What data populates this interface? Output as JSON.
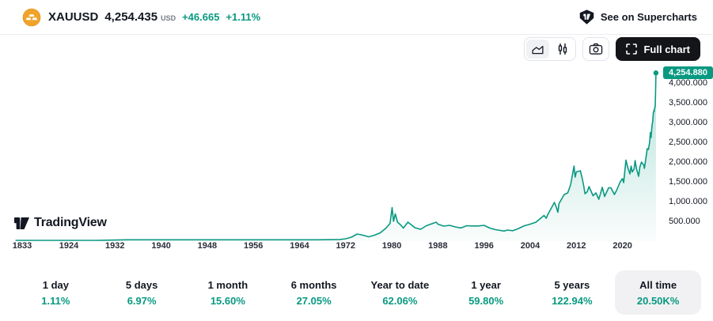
{
  "header": {
    "symbol": "XAUUSD",
    "price": "4,254.435",
    "currency": "USD",
    "change": "+46.665",
    "change_percent": "+1.11%",
    "supercharts_label": "See on Supercharts"
  },
  "toolbar": {
    "full_chart_label": "Full chart",
    "icons": [
      "area-chart-icon",
      "candlestick-icon",
      "camera-icon",
      "fullscreen-icon"
    ],
    "selected_chart_type": "area"
  },
  "watermark": {
    "text": "TradingView"
  },
  "chart_data": {
    "type": "area",
    "symbol": "XAUUSD",
    "last_price": 4254.88,
    "last_price_label": "4,254.880",
    "line_color": "#089981",
    "fill_top": "rgba(8,153,129,0.30)",
    "fill_bottom": "rgba(8,153,129,0.02)",
    "ylim": [
      0,
      4600
    ],
    "grid": false,
    "y_ticks": [
      {
        "value": 4000,
        "label": "4,000.000"
      },
      {
        "value": 3500,
        "label": "3,500.000"
      },
      {
        "value": 3000,
        "label": "3,000.000"
      },
      {
        "value": 2500,
        "label": "2,500.000"
      },
      {
        "value": 2000,
        "label": "2,000.000"
      },
      {
        "value": 1500,
        "label": "1,500.000"
      },
      {
        "value": 1000,
        "label": "1,000.000"
      },
      {
        "value": 500,
        "label": "500.000"
      }
    ],
    "x_ticks": [
      {
        "year": 1833,
        "label": "1833"
      },
      {
        "year": 1924,
        "label": "1924"
      },
      {
        "year": 1932,
        "label": "1932"
      },
      {
        "year": 1940,
        "label": "1940"
      },
      {
        "year": 1948,
        "label": "1948"
      },
      {
        "year": 1956,
        "label": "1956"
      },
      {
        "year": 1964,
        "label": "1964"
      },
      {
        "year": 1972,
        "label": "1972"
      },
      {
        "year": 1980,
        "label": "1980"
      },
      {
        "year": 1988,
        "label": "1988"
      },
      {
        "year": 1996,
        "label": "1996"
      },
      {
        "year": 2004,
        "label": "2004"
      },
      {
        "year": 2012,
        "label": "2012"
      },
      {
        "year": 2020,
        "label": "2020"
      }
    ],
    "points": [
      [
        1820,
        20
      ],
      [
        1850,
        20
      ],
      [
        1880,
        20
      ],
      [
        1910,
        20
      ],
      [
        1929,
        20
      ],
      [
        1934,
        35
      ],
      [
        1950,
        35
      ],
      [
        1960,
        35
      ],
      [
        1967,
        35
      ],
      [
        1970,
        37
      ],
      [
        1971,
        43
      ],
      [
        1972,
        60
      ],
      [
        1973,
        100
      ],
      [
        1974,
        180
      ],
      [
        1975,
        150
      ],
      [
        1976,
        110
      ],
      [
        1977,
        150
      ],
      [
        1978,
        210
      ],
      [
        1979,
        330
      ],
      [
        1979.7,
        450
      ],
      [
        1980.05,
        850
      ],
      [
        1980.3,
        500
      ],
      [
        1980.6,
        690
      ],
      [
        1981,
        480
      ],
      [
        1981.6,
        400
      ],
      [
        1982,
        330
      ],
      [
        1982.8,
        480
      ],
      [
        1983.5,
        400
      ],
      [
        1984,
        340
      ],
      [
        1985,
        300
      ],
      [
        1986,
        390
      ],
      [
        1987.7,
        480
      ],
      [
        1988,
        430
      ],
      [
        1989,
        380
      ],
      [
        1990,
        400
      ],
      [
        1991,
        360
      ],
      [
        1992,
        335
      ],
      [
        1993,
        390
      ],
      [
        1994,
        385
      ],
      [
        1995,
        385
      ],
      [
        1996,
        400
      ],
      [
        1997,
        330
      ],
      [
        1998,
        290
      ],
      [
        1999.5,
        255
      ],
      [
        2000,
        280
      ],
      [
        2001,
        265
      ],
      [
        2002,
        320
      ],
      [
        2003,
        390
      ],
      [
        2004,
        430
      ],
      [
        2005,
        480
      ],
      [
        2006.4,
        650
      ],
      [
        2006.8,
        580
      ],
      [
        2007,
        660
      ],
      [
        2008.2,
        980
      ],
      [
        2008.5,
        870
      ],
      [
        2008.8,
        730
      ],
      [
        2009,
        950
      ],
      [
        2009.9,
        1180
      ],
      [
        2010.5,
        1220
      ],
      [
        2011,
        1420
      ],
      [
        2011.6,
        1900
      ],
      [
        2011.8,
        1620
      ],
      [
        2012,
        1750
      ],
      [
        2012.7,
        1780
      ],
      [
        2013,
        1600
      ],
      [
        2013.3,
        1380
      ],
      [
        2013.5,
        1200
      ],
      [
        2013.9,
        1250
      ],
      [
        2014.2,
        1380
      ],
      [
        2014.9,
        1150
      ],
      [
        2015.4,
        1220
      ],
      [
        2015.9,
        1060
      ],
      [
        2016.5,
        1360
      ],
      [
        2016.9,
        1130
      ],
      [
        2017.6,
        1350
      ],
      [
        2018,
        1350
      ],
      [
        2018.6,
        1180
      ],
      [
        2019,
        1290
      ],
      [
        2019.6,
        1500
      ],
      [
        2020,
        1580
      ],
      [
        2020.2,
        1480
      ],
      [
        2020.6,
        2050
      ],
      [
        2020.9,
        1870
      ],
      [
        2021.3,
        1700
      ],
      [
        2021.5,
        1900
      ],
      [
        2021.7,
        1750
      ],
      [
        2022,
        1820
      ],
      [
        2022.2,
        2040
      ],
      [
        2022.4,
        1850
      ],
      [
        2022.8,
        1640
      ],
      [
        2023,
        1870
      ],
      [
        2023.3,
        2000
      ],
      [
        2023.7,
        1920
      ],
      [
        2023.8,
        1840
      ],
      [
        2024,
        2040
      ],
      [
        2024.3,
        2340
      ],
      [
        2024.5,
        2320
      ],
      [
        2024.7,
        2500
      ],
      [
        2024.85,
        2750
      ],
      [
        2024.95,
        2620
      ],
      [
        2025.1,
        2900
      ],
      [
        2025.25,
        3050
      ],
      [
        2025.35,
        3250
      ],
      [
        2025.45,
        3300
      ],
      [
        2025.5,
        3280
      ],
      [
        2025.55,
        3350
      ],
      [
        2025.62,
        3380
      ],
      [
        2025.68,
        3440
      ],
      [
        2025.72,
        3650
      ],
      [
        2025.76,
        3950
      ],
      [
        2025.8,
        4254.88
      ]
    ]
  },
  "periods": [
    {
      "label": "1 day",
      "value": "1.11%",
      "selected": false
    },
    {
      "label": "5 days",
      "value": "6.97%",
      "selected": false
    },
    {
      "label": "1 month",
      "value": "15.60%",
      "selected": false
    },
    {
      "label": "6 months",
      "value": "27.05%",
      "selected": false
    },
    {
      "label": "Year to date",
      "value": "62.06%",
      "selected": false
    },
    {
      "label": "1 year",
      "value": "59.80%",
      "selected": false
    },
    {
      "label": "5 years",
      "value": "122.94%",
      "selected": false
    },
    {
      "label": "All time",
      "value": "20.50K%",
      "selected": true
    }
  ],
  "colors": {
    "accent": "#089981",
    "text_dark": "#131722",
    "text_gray": "#787b86",
    "gold": "#f0a32a",
    "button_dark": "#141519",
    "selected_bg": "#f1f1f3",
    "border": "#e0e3eb"
  }
}
